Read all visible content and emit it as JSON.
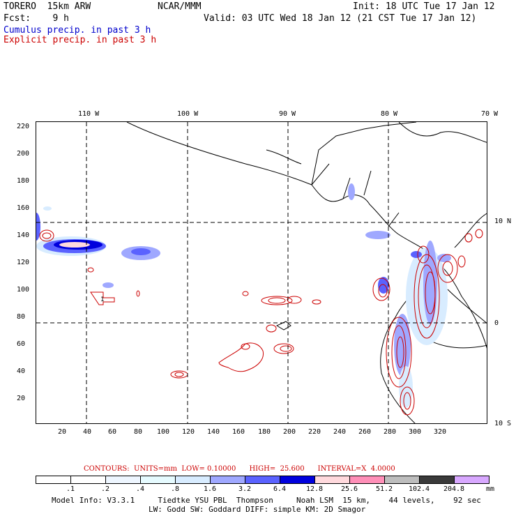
{
  "header": {
    "model_line": "TORERO  15km ARW",
    "org": "NCAR/MMM",
    "init": "Init: 18 UTC Tue 17 Jan 12",
    "fcst": "Fcst:    9 h",
    "valid": "Valid: 03 UTC Wed 18 Jan 12 (21 CST Tue 17 Jan 12)",
    "legend_cumulus": "Cumulus precip. in past 3 h",
    "legend_explicit": "Explicit precip. in past 3 h"
  },
  "top_labels": [
    "110 W",
    "100 W",
    "90 W",
    "80 W",
    "70 W"
  ],
  "right_labels": [
    "10 N",
    "0",
    "10 S"
  ],
  "left_labels": [
    "220",
    "200",
    "180",
    "160",
    "140",
    "120",
    "100",
    "80",
    "60",
    "40",
    "20"
  ],
  "bottom_labels": [
    "20",
    "40",
    "60",
    "80",
    "100",
    "120",
    "140",
    "160",
    "180",
    "200",
    "220",
    "240",
    "260",
    "280",
    "300",
    "320"
  ],
  "colors": {
    "cumulus": "#0000cc",
    "explicit": "#cc0000",
    "scale": [
      "#ffffff",
      "#ffffff",
      "#eef6ff",
      "#e6fbff",
      "#d8ecff",
      "#9fa8ff",
      "#5a62ff",
      "#0000dd",
      "#ffd9dd",
      "#ff8fb8",
      "#bdbdbd",
      "#3a3a3a",
      "#d8a8ff"
    ]
  },
  "contours": "CONTOURS:  UNITS=mm  LOW= 0.10000      HIGH=  25.600      INTERVAL=X  4.0000",
  "scale_ticks": [
    ".1",
    ".2",
    ".4",
    ".8",
    "1.6",
    "3.2",
    "6.4",
    "12.8",
    "25.6",
    "51.2",
    "102.4",
    "204.8",
    "mm"
  ],
  "footer_1": "Model Info: V3.3.1     Tiedtke YSU PBL  Thompson     Noah LSM  15 km,    44 levels,    92 sec",
  "footer_2": "LW: Godd SW: Goddard DIFF: simple KM: 2D Smagor",
  "map_label": "1"
}
